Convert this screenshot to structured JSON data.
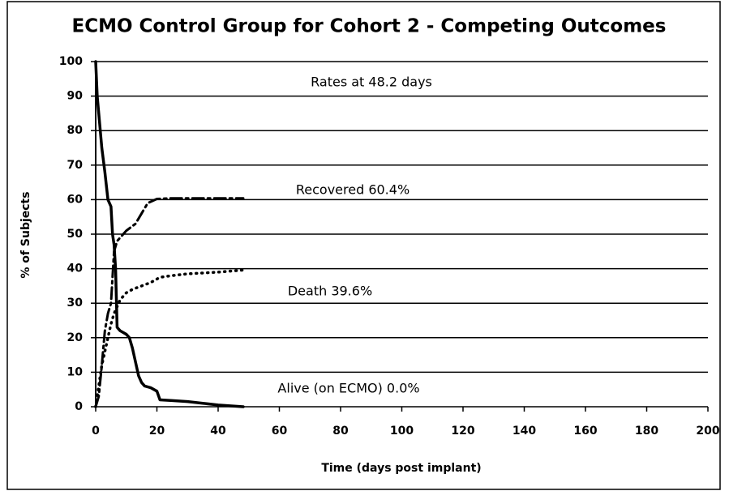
{
  "chart_data": {
    "type": "line",
    "title": "ECMO Control Group for Cohort 2 - Competing Outcomes",
    "xlabel": "Time (days post implant)",
    "ylabel": "% of Subjects",
    "annotation": "Rates at 48.2 days",
    "xlim": [
      0,
      200
    ],
    "xticks": [
      0,
      20,
      40,
      60,
      80,
      100,
      120,
      140,
      160,
      180,
      200
    ],
    "ylim": [
      0,
      100
    ],
    "yticks": [
      0,
      10,
      20,
      30,
      40,
      50,
      60,
      70,
      80,
      90,
      100
    ],
    "grid": true,
    "series": [
      {
        "label": "Alive (on ECMO) 0.0%",
        "color": "#000000",
        "linestyle": "solid",
        "x": [
          0,
          0.5,
          1,
          2,
          3,
          4,
          5,
          5.5,
          6,
          6.5,
          7,
          8,
          10,
          11,
          12,
          13,
          14,
          15,
          16,
          18,
          20,
          21,
          25,
          30,
          35,
          40,
          48.2
        ],
        "values": [
          100,
          90,
          85,
          75,
          68,
          60,
          58,
          50,
          47,
          40,
          23,
          22,
          21,
          20,
          17,
          13,
          9,
          7,
          6,
          5.5,
          4.5,
          2,
          1.8,
          1.5,
          1,
          0.5,
          0
        ]
      },
      {
        "label": "Recovered 60.4%",
        "color": "#000000",
        "linestyle": "dashdot",
        "x": [
          0,
          1,
          2,
          3,
          4,
          5,
          6,
          7,
          10,
          13,
          15,
          17,
          20,
          25,
          48.2
        ],
        "values": [
          0,
          3,
          12,
          22,
          27,
          30,
          45,
          48,
          51,
          53,
          56,
          59,
          60.2,
          60.4,
          60.4
        ]
      },
      {
        "label": "Death 39.6%",
        "color": "#000000",
        "linestyle": "dotted",
        "x": [
          0,
          1,
          2,
          3,
          4,
          5,
          6,
          7,
          8,
          10,
          12,
          15,
          18,
          21,
          25,
          30,
          40,
          48.2
        ],
        "values": [
          0,
          6,
          12,
          16,
          20,
          24,
          27,
          29,
          31,
          33,
          34,
          35,
          36,
          37.5,
          38,
          38.5,
          39,
          39.6
        ]
      }
    ]
  }
}
